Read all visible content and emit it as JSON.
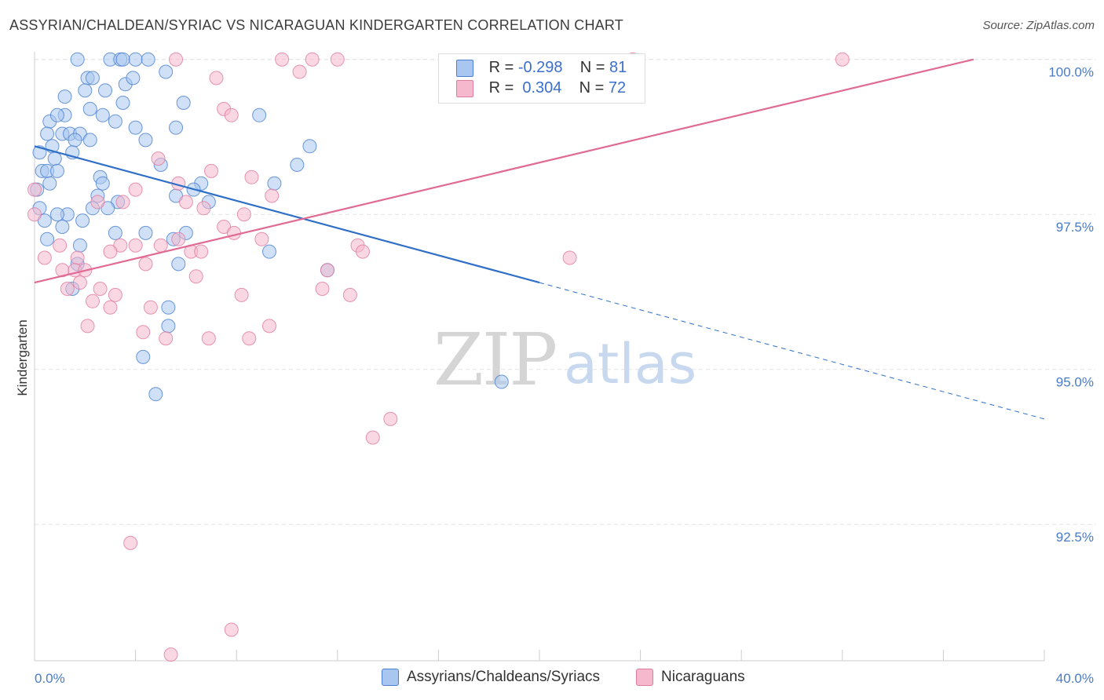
{
  "title": "ASSYRIAN/CHALDEAN/SYRIAC VS NICARAGUAN KINDERGARTEN CORRELATION CHART",
  "source": "Source: ZipAtlas.com",
  "watermark": {
    "zip": "ZIP",
    "atlas": "atlas"
  },
  "legend": {
    "rows": [
      {
        "r_label": "R =",
        "r_value": "-0.298",
        "n_label": "N =",
        "n_value": "81"
      },
      {
        "r_label": "R =",
        "r_value": "0.304",
        "n_label": "N =",
        "n_value": "72"
      }
    ]
  },
  "chart_data": {
    "type": "scatter",
    "title": "ASSYRIAN/CHALDEAN/SYRIAC VS NICARAGUAN KINDERGARTEN CORRELATION CHART",
    "xlabel": "",
    "ylabel": "Kindergarten",
    "xlim": [
      0,
      40
    ],
    "ylim": [
      90.3,
      100.3
    ],
    "x_tick_labels": [
      "0.0%",
      "40.0%"
    ],
    "y_ticks": [
      92.5,
      95.0,
      97.5,
      100.0
    ],
    "y_tick_labels": [
      "92.5%",
      "95.0%",
      "97.5%",
      "100.0%"
    ],
    "colors": {
      "blue_fill": "#a8c6f0",
      "blue_stroke": "#4a7fd0",
      "blue_line": "#2f6fc8",
      "pink_fill": "#f5b8cc",
      "pink_stroke": "#e07ba0",
      "pink_line": "#e06a93"
    },
    "series": [
      {
        "name": "Assyrians/Chaldeans/Syriacs",
        "color": "#a8c6f0",
        "points": [
          [
            1.7,
            100.0
          ],
          [
            3.0,
            100.0
          ],
          [
            3.4,
            100.0
          ],
          [
            4.0,
            100.0
          ],
          [
            4.5,
            100.0
          ],
          [
            3.5,
            100.0
          ],
          [
            2.1,
            99.7
          ],
          [
            2.3,
            99.7
          ],
          [
            3.6,
            99.6
          ],
          [
            3.9,
            99.7
          ],
          [
            5.2,
            99.8
          ],
          [
            1.2,
            99.4
          ],
          [
            2.0,
            99.5
          ],
          [
            2.8,
            99.5
          ],
          [
            3.5,
            99.3
          ],
          [
            5.9,
            99.3
          ],
          [
            2.2,
            99.2
          ],
          [
            0.6,
            99.0
          ],
          [
            1.2,
            99.1
          ],
          [
            0.9,
            99.1
          ],
          [
            2.7,
            99.1
          ],
          [
            3.2,
            99.0
          ],
          [
            4.0,
            98.9
          ],
          [
            5.6,
            98.9
          ],
          [
            8.9,
            99.1
          ],
          [
            0.5,
            98.8
          ],
          [
            1.1,
            98.8
          ],
          [
            1.4,
            98.8
          ],
          [
            1.8,
            98.8
          ],
          [
            2.2,
            98.7
          ],
          [
            1.6,
            98.7
          ],
          [
            4.4,
            98.7
          ],
          [
            0.7,
            98.6
          ],
          [
            1.5,
            98.5
          ],
          [
            0.2,
            98.5
          ],
          [
            0.8,
            98.4
          ],
          [
            5.0,
            98.3
          ],
          [
            10.9,
            98.6
          ],
          [
            0.3,
            98.2
          ],
          [
            0.5,
            98.2
          ],
          [
            0.9,
            98.2
          ],
          [
            2.6,
            98.1
          ],
          [
            0.6,
            98.0
          ],
          [
            2.7,
            98.0
          ],
          [
            6.6,
            98.0
          ],
          [
            10.4,
            98.3
          ],
          [
            9.5,
            98.0
          ],
          [
            0.1,
            97.9
          ],
          [
            2.5,
            97.8
          ],
          [
            3.3,
            97.7
          ],
          [
            5.6,
            97.8
          ],
          [
            6.3,
            97.9
          ],
          [
            0.2,
            97.6
          ],
          [
            1.3,
            97.5
          ],
          [
            1.9,
            97.4
          ],
          [
            2.3,
            97.6
          ],
          [
            2.9,
            97.6
          ],
          [
            6.9,
            97.7
          ],
          [
            0.4,
            97.4
          ],
          [
            0.9,
            97.5
          ],
          [
            0.5,
            97.1
          ],
          [
            1.1,
            97.3
          ],
          [
            3.2,
            97.2
          ],
          [
            4.4,
            97.2
          ],
          [
            5.5,
            97.1
          ],
          [
            6.0,
            97.2
          ],
          [
            9.3,
            96.9
          ],
          [
            1.8,
            97.0
          ],
          [
            1.7,
            96.7
          ],
          [
            5.7,
            96.7
          ],
          [
            11.6,
            96.6
          ],
          [
            1.5,
            96.3
          ],
          [
            5.3,
            96.0
          ],
          [
            5.3,
            95.7
          ],
          [
            4.3,
            95.2
          ],
          [
            4.8,
            94.6
          ],
          [
            18.5,
            94.8
          ]
        ]
      },
      {
        "name": "Nicaraguans",
        "color": "#f5b8cc",
        "points": [
          [
            5.6,
            100.0
          ],
          [
            9.8,
            100.0
          ],
          [
            11.0,
            100.0
          ],
          [
            12.0,
            100.0
          ],
          [
            23.7,
            100.0
          ],
          [
            32.0,
            100.0
          ],
          [
            7.2,
            99.7
          ],
          [
            10.5,
            99.8
          ],
          [
            7.5,
            99.2
          ],
          [
            7.8,
            99.1
          ],
          [
            4.9,
            98.4
          ],
          [
            7.0,
            98.2
          ],
          [
            8.6,
            98.1
          ],
          [
            5.7,
            98.0
          ],
          [
            4.0,
            97.9
          ],
          [
            9.4,
            97.8
          ],
          [
            3.5,
            97.7
          ],
          [
            6.0,
            97.7
          ],
          [
            6.7,
            97.6
          ],
          [
            8.3,
            97.5
          ],
          [
            2.5,
            97.7
          ],
          [
            0.0,
            97.9
          ],
          [
            0.0,
            97.5
          ],
          [
            1.0,
            97.0
          ],
          [
            3.4,
            97.0
          ],
          [
            4.0,
            97.0
          ],
          [
            5.7,
            97.1
          ],
          [
            7.5,
            97.3
          ],
          [
            7.9,
            97.2
          ],
          [
            9.0,
            97.1
          ],
          [
            12.8,
            97.0
          ],
          [
            13.0,
            96.9
          ],
          [
            0.4,
            96.8
          ],
          [
            1.7,
            96.8
          ],
          [
            3.0,
            96.9
          ],
          [
            5.0,
            97.0
          ],
          [
            4.4,
            96.7
          ],
          [
            6.2,
            96.9
          ],
          [
            6.6,
            96.9
          ],
          [
            21.2,
            96.8
          ],
          [
            1.1,
            96.6
          ],
          [
            1.6,
            96.6
          ],
          [
            2.0,
            96.6
          ],
          [
            11.6,
            96.6
          ],
          [
            11.4,
            96.3
          ],
          [
            6.4,
            96.5
          ],
          [
            1.8,
            96.4
          ],
          [
            1.3,
            96.3
          ],
          [
            2.6,
            96.3
          ],
          [
            8.2,
            96.2
          ],
          [
            3.2,
            96.2
          ],
          [
            12.5,
            96.2
          ],
          [
            2.3,
            96.1
          ],
          [
            4.6,
            96.0
          ],
          [
            3.0,
            96.0
          ],
          [
            2.1,
            95.7
          ],
          [
            4.3,
            95.6
          ],
          [
            9.3,
            95.7
          ],
          [
            5.2,
            95.5
          ],
          [
            6.9,
            95.5
          ],
          [
            8.5,
            95.5
          ],
          [
            14.1,
            94.2
          ],
          [
            13.4,
            93.9
          ],
          [
            3.8,
            92.2
          ],
          [
            7.8,
            90.8
          ],
          [
            5.4,
            90.4
          ]
        ]
      }
    ],
    "trendlines": [
      {
        "series": "Assyrians/Chaldeans/Syriacs",
        "x": [
          0,
          20
        ],
        "y": [
          98.6,
          96.4
        ],
        "dashed_to": [
          40,
          94.2
        ]
      },
      {
        "series": "Nicaraguans",
        "x": [
          0,
          37.2
        ],
        "y": [
          96.4,
          100.0
        ]
      }
    ]
  },
  "bottom_legend": {
    "items": [
      {
        "label": "Assyrians/Chaldeans/Syriacs",
        "color": "#a8c6f0",
        "stroke": "#4a7fd0"
      },
      {
        "label": "Nicaraguans",
        "color": "#f5b8cc",
        "stroke": "#e07ba0"
      }
    ]
  }
}
